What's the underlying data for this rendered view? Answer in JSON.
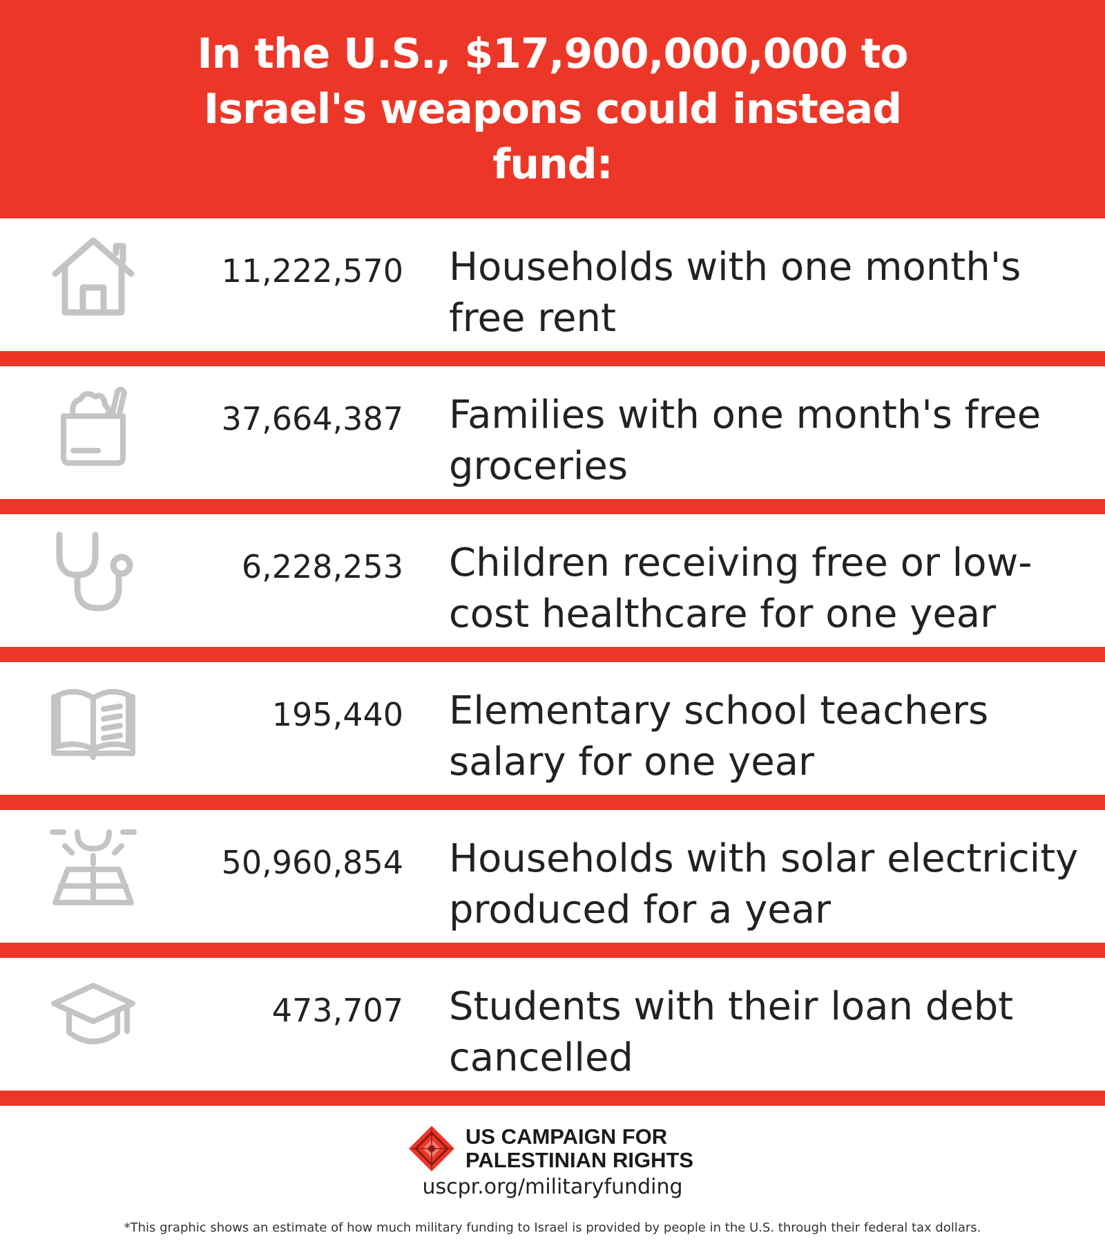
{
  "header": {
    "title": "In the U.S., $17,900,000,000 to Israel's weapons could instead fund:"
  },
  "colors": {
    "accent": "#ec3728",
    "icon_gray": "#c4c4c4",
    "text": "#222222"
  },
  "items": [
    {
      "icon": "house-icon",
      "value": "11,222,570",
      "label": "Households with one month's free rent"
    },
    {
      "icon": "grocery-bag-icon",
      "value": "37,664,387",
      "label": "Families with one month's free groceries"
    },
    {
      "icon": "stethoscope-icon",
      "value": "6,228,253",
      "label": "Children receiving free or low-cost healthcare for one year"
    },
    {
      "icon": "open-book-icon",
      "value": "195,440",
      "label": "Elementary school teachers salary for one year"
    },
    {
      "icon": "solar-panel-icon",
      "value": "50,960,854",
      "label": "Households with solar electricity produced for a year"
    },
    {
      "icon": "graduation-cap-icon",
      "value": "473,707",
      "label": "Students with their loan debt cancelled"
    }
  ],
  "footer": {
    "org_line1": "US CAMPAIGN FOR",
    "org_line2": "PALESTINIAN RIGHTS",
    "url": "uscpr.org/militaryfunding",
    "note": "*This graphic shows an estimate of how much military funding to Israel is provided by people in the U.S. through their federal tax dollars."
  }
}
